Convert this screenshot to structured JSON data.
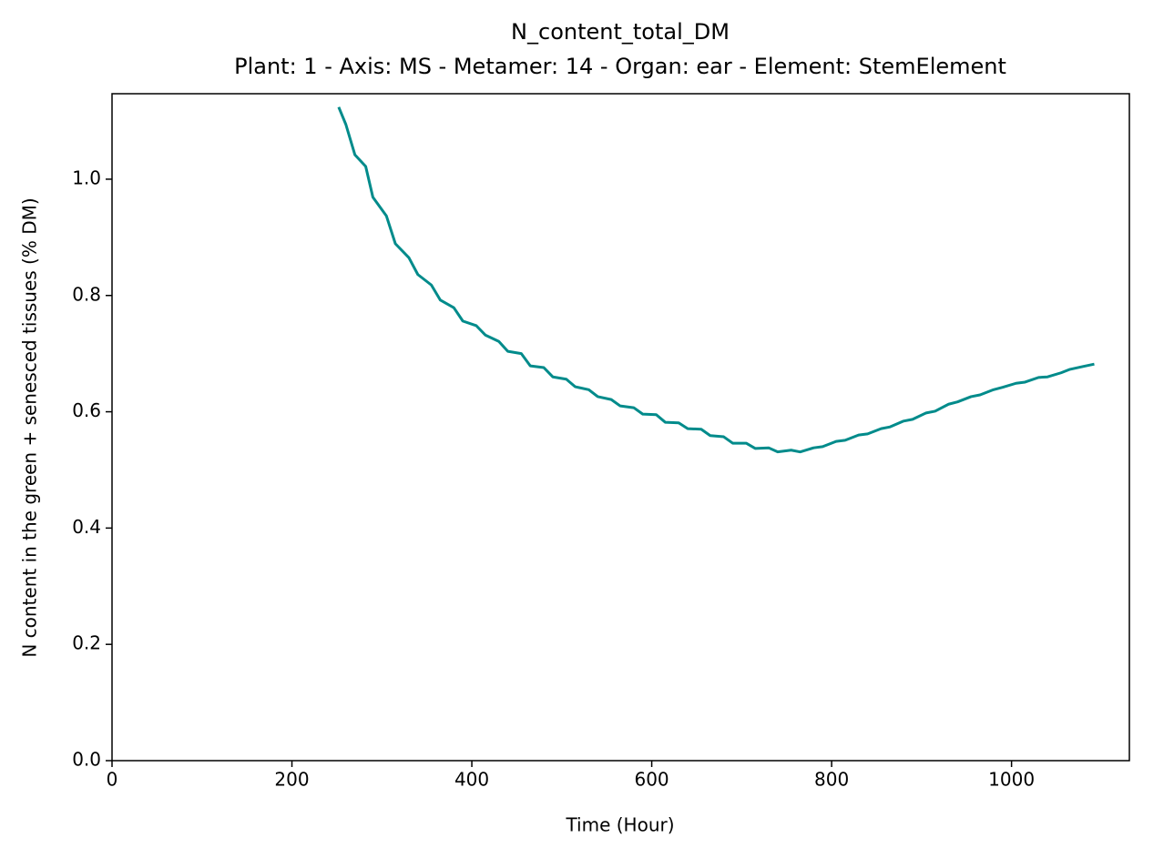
{
  "chart_data": {
    "type": "line",
    "title": "N_content_total_DM",
    "subtitle": "Plant: 1 - Axis: MS - Metamer: 14 - Organ: ear - Element: StemElement",
    "x_label": "Time (Hour)",
    "y_label": "N content in the green + senesced tissues (% DM)",
    "xlim": [
      0,
      1131
    ],
    "ylim": [
      0,
      1.147
    ],
    "xticks": [
      0,
      200,
      400,
      600,
      800,
      1000
    ],
    "yticks": [
      {
        "value": 0,
        "label": "0.0"
      },
      0.2,
      0.4,
      0.6,
      0.8,
      {
        "value": 1,
        "label": "1.0"
      }
    ],
    "grid": false,
    "series": [
      {
        "color": "#008b8b",
        "x": [
          252,
          260,
          270,
          282,
          290,
          305,
          315,
          330,
          340,
          355,
          365,
          380,
          390,
          405,
          415,
          430,
          440,
          455,
          465,
          480,
          490,
          505,
          515,
          530,
          540,
          555,
          565,
          580,
          590,
          605,
          615,
          630,
          640,
          655,
          665,
          680,
          690,
          705,
          715,
          730,
          740,
          755,
          765,
          780,
          790,
          805,
          815,
          830,
          840,
          855,
          865,
          880,
          890,
          905,
          915,
          930,
          940,
          955,
          965,
          980,
          990,
          1005,
          1015,
          1030,
          1040,
          1055,
          1065,
          1080,
          1092
        ],
        "values": [
          1.124,
          1.094,
          1.042,
          1.022,
          0.969,
          0.937,
          0.889,
          0.865,
          0.836,
          0.818,
          0.792,
          0.779,
          0.756,
          0.748,
          0.732,
          0.721,
          0.704,
          0.7,
          0.679,
          0.676,
          0.66,
          0.656,
          0.643,
          0.638,
          0.626,
          0.621,
          0.61,
          0.607,
          0.596,
          0.595,
          0.582,
          0.581,
          0.571,
          0.57,
          0.559,
          0.557,
          0.546,
          0.546,
          0.537,
          0.538,
          0.531,
          0.534,
          0.531,
          0.538,
          0.54,
          0.549,
          0.551,
          0.56,
          0.562,
          0.571,
          0.574,
          0.584,
          0.587,
          0.598,
          0.601,
          0.613,
          0.617,
          0.626,
          0.629,
          0.638,
          0.642,
          0.649,
          0.651,
          0.659,
          0.66,
          0.667,
          0.673,
          0.678,
          0.682
        ]
      }
    ]
  }
}
